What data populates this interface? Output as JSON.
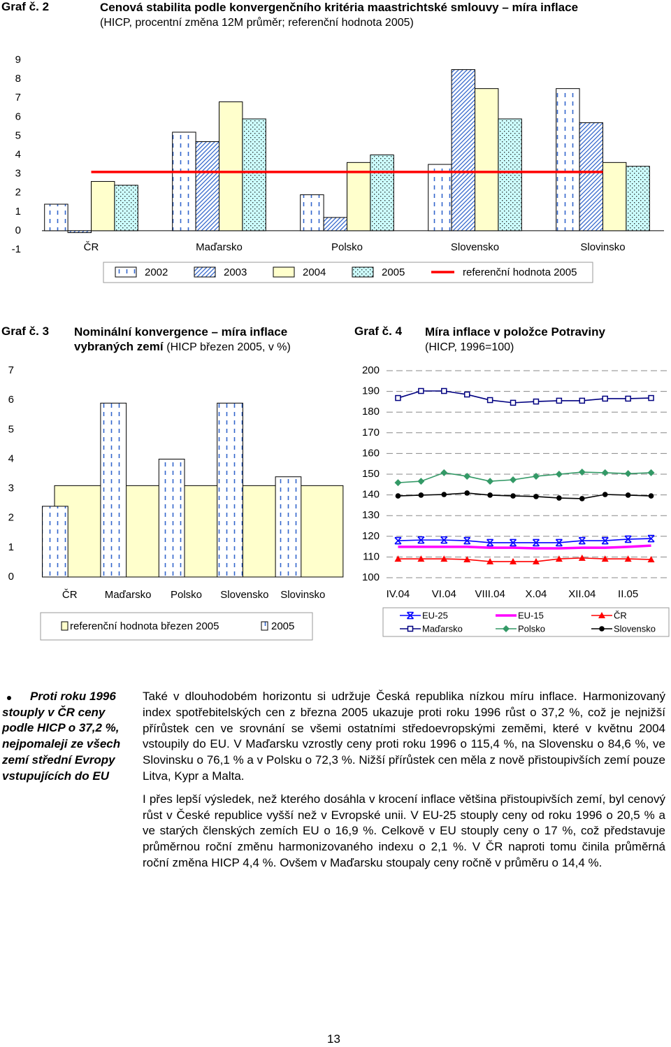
{
  "chart_data": [
    {
      "type": "bar",
      "label": "Graf č. 2",
      "title": "Cenová stabilita podle konvergenčního kritéria maastrichtské smlouvy – míra inflace",
      "subtitle": "(HICP, procentní změna 12M průměr; referenční hodnota 2005)",
      "categories": [
        "ČR",
        "Maďarsko",
        "Polsko",
        "Slovensko",
        "Slovinsko"
      ],
      "series": [
        {
          "name": "2002",
          "color": "#ffffff",
          "pattern": "vdash",
          "values": [
            1.4,
            5.2,
            1.9,
            3.5,
            7.5
          ]
        },
        {
          "name": "2003",
          "color": "#ffffff",
          "pattern": "diag",
          "values": [
            -0.1,
            4.7,
            0.7,
            8.5,
            5.7
          ]
        },
        {
          "name": "2004",
          "color": "#ffffcc",
          "pattern": "none",
          "values": [
            2.6,
            6.8,
            3.6,
            7.5,
            3.6
          ]
        },
        {
          "name": "2005",
          "color": "#ccffff",
          "pattern": "dots",
          "values": [
            2.4,
            5.9,
            4.0,
            5.9,
            3.4
          ]
        }
      ],
      "reference": {
        "name": "referenční hodnota 2005",
        "color": "#ff0000",
        "value": 3.1
      },
      "ylim": [
        -1,
        9
      ],
      "yticks": [
        -1,
        0,
        1,
        2,
        3,
        4,
        5,
        6,
        7,
        8,
        9
      ],
      "grid": false,
      "legend": "bottom"
    },
    {
      "type": "bar",
      "label": "Graf č. 3",
      "title": "Nominální konvergence – míra inflace vybraných zemí",
      "subtitle": "(HICP březen 2005, v %)",
      "categories": [
        "ČR",
        "Maďarsko",
        "Polsko",
        "Slovensko",
        "Slovinsko"
      ],
      "series": [
        {
          "name": "referenční hodnota březen 2005",
          "color": "#ffffcc",
          "pattern": "none",
          "values": [
            3.1,
            3.1,
            3.1,
            3.1,
            3.1
          ]
        },
        {
          "name": "2005",
          "color": "#ffffff",
          "pattern": "vdash",
          "values": [
            2.4,
            5.9,
            4.0,
            5.9,
            3.4
          ]
        }
      ],
      "ylim": [
        0,
        7
      ],
      "yticks": [
        0,
        1,
        2,
        3,
        4,
        5,
        6,
        7
      ],
      "grid": false,
      "legend": "bottom"
    },
    {
      "type": "line",
      "label": "Graf č. 4",
      "title": "Míra inflace v položce Potraviny",
      "subtitle": "(HICP, 1996=100)",
      "categories": [
        "IV.04",
        null,
        "VI.04",
        null,
        "VIII.04",
        null,
        "X.04",
        null,
        "XII.04",
        null,
        "II.05",
        null
      ],
      "series": [
        {
          "name": "EU-25",
          "color": "#0000ff",
          "marker": "star",
          "values": [
            117.9,
            118.2,
            118.2,
            117.9,
            116.9,
            116.9,
            116.9,
            116.9,
            117.9,
            117.9,
            118.6,
            118.9
          ]
        },
        {
          "name": "EU-15",
          "color": "#ff00ff",
          "marker": "none",
          "values": [
            114.9,
            114.9,
            114.9,
            114.9,
            114.5,
            114.5,
            114.2,
            114.2,
            114.5,
            114.5,
            114.9,
            115.5
          ]
        },
        {
          "name": "ČR",
          "color": "#ff0000",
          "marker": "triangle",
          "values": [
            109.1,
            109.1,
            109.1,
            108.8,
            107.8,
            107.8,
            107.8,
            109.1,
            109.5,
            109.1,
            109.1,
            108.8
          ]
        },
        {
          "name": "Maďarsko",
          "color": "#000080",
          "marker": "square",
          "values": [
            186.8,
            190.2,
            190.2,
            188.5,
            185.8,
            184.5,
            185.1,
            185.5,
            185.5,
            186.5,
            186.5,
            186.8
          ]
        },
        {
          "name": "Polsko",
          "color": "#339966",
          "marker": "diamond",
          "values": [
            145.9,
            146.6,
            150.7,
            149.0,
            146.6,
            147.3,
            149.0,
            150.0,
            151.0,
            150.7,
            150.3,
            150.7
          ]
        },
        {
          "name": "Slovensko",
          "color": "#000000",
          "marker": "circle",
          "values": [
            139.5,
            139.9,
            140.2,
            140.9,
            139.9,
            139.5,
            139.2,
            138.5,
            138.2,
            140.2,
            139.9,
            139.5
          ]
        }
      ],
      "ylim": [
        100,
        200
      ],
      "yticks": [
        100,
        110,
        120,
        130,
        140,
        150,
        160,
        170,
        180,
        190,
        200
      ],
      "grid": true,
      "legend": "bottom"
    }
  ],
  "sidebar": "Proti roku 1996 stouply v ČR ceny podle HICP o 37,2 %, nejpomaleji ze všech zemí střední Evropy vstupujících do EU",
  "paragraphs": [
    "Také v dlouhodobém horizontu si udržuje Česká republika nízkou míru inflace. Harmonizovaný index spotřebitelských cen z března 2005 ukazuje proti roku 1996 růst o 37,2 %, což je nejnižší přírůstek cen ve srovnání se všemi ostatními středoevropskými zeměmi, které v květnu 2004 vstoupily do EU. V Maďarsku vzrostly ceny proti roku 1996 o 115,4 %, na Slovensku o 84,6 %, ve Slovinsku o 76,1 % a v Polsku o 72,3 %. Nižší přírůstek cen měla z nově přistoupivších zemí pouze Litva, Kypr a Malta.",
    "I přes lepší výsledek, než kterého dosáhla v krocení inflace většina přistoupivších zemí, byl cenový růst v České republice vyšší než v Evropské unii. V EU-25 stouply ceny od roku 1996 o 20,5 % a ve starých členských zemích EU o 16,9 %. Celkově v EU stouply ceny o 17 %, což představuje průměrnou roční změnu harmonizovaného indexu o 2,1 %. V ČR naproti tomu činila průměrná roční změna HICP 4,4 %. Ovšem v Maďarsku stoupaly ceny ročně v průměru o 14,4 %."
  ],
  "page_number": "13"
}
